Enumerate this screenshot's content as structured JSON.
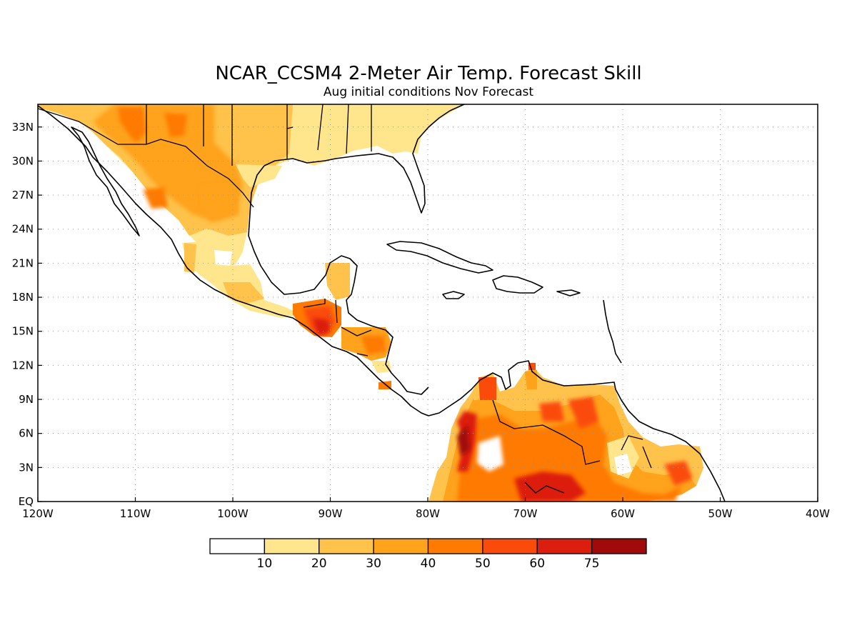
{
  "title": "NCAR_CCSM4 2-Meter Air Temp. Forecast Skill",
  "subtitle": "Aug initial conditions  Nov Forecast",
  "map": {
    "lon_range": [
      -120,
      -40
    ],
    "lat_range": [
      0,
      35
    ],
    "lon_ticks": [
      {
        "value": -120,
        "label": "120W"
      },
      {
        "value": -110,
        "label": "110W"
      },
      {
        "value": -100,
        "label": "100W"
      },
      {
        "value": -90,
        "label": "90W"
      },
      {
        "value": -80,
        "label": "80W"
      },
      {
        "value": -70,
        "label": "70W"
      },
      {
        "value": -60,
        "label": "60W"
      },
      {
        "value": -50,
        "label": "50W"
      },
      {
        "value": -40,
        "label": "40W"
      }
    ],
    "lat_ticks": [
      {
        "value": 0,
        "label": "EQ"
      },
      {
        "value": 3,
        "label": "3N"
      },
      {
        "value": 6,
        "label": "6N"
      },
      {
        "value": 9,
        "label": "9N"
      },
      {
        "value": 12,
        "label": "12N"
      },
      {
        "value": 15,
        "label": "15N"
      },
      {
        "value": 18,
        "label": "18N"
      },
      {
        "value": 21,
        "label": "21N"
      },
      {
        "value": 24,
        "label": "24N"
      },
      {
        "value": 27,
        "label": "27N"
      },
      {
        "value": 30,
        "label": "30N"
      },
      {
        "value": 33,
        "label": "33N"
      }
    ],
    "grid": true
  },
  "colorbar": {
    "levels": [
      "10",
      "20",
      "30",
      "40",
      "50",
      "60",
      "75"
    ],
    "colors": [
      "#ffffff",
      "#ffe68c",
      "#ffc24a",
      "#ffa21c",
      "#ff7a00",
      "#fa4b0a",
      "#dc1e0f",
      "#a00a0a"
    ]
  },
  "chart_data": {
    "type": "heatmap",
    "title": "NCAR_CCSM4 2-Meter Air Temp. Forecast Skill",
    "subtitle": "Aug initial conditions  Nov Forecast",
    "xlim": [
      -120,
      -40
    ],
    "ylim": [
      0,
      35
    ],
    "levels": [
      10,
      20,
      30,
      40,
      50,
      60,
      75
    ],
    "regions": [
      {
        "lon": -108,
        "lat": 33,
        "value": 35
      },
      {
        "lon": -111,
        "lat": 34,
        "value": 45
      },
      {
        "lon": -106,
        "lat": 33,
        "value": 40
      },
      {
        "lon": -98,
        "lat": 32,
        "value": 25
      },
      {
        "lon": -91,
        "lat": 32,
        "value": 15
      },
      {
        "lon": -85,
        "lat": 32,
        "value": 12
      },
      {
        "lon": -106,
        "lat": 27,
        "value": 35
      },
      {
        "lon": -101,
        "lat": 26,
        "value": 38
      },
      {
        "lon": -103,
        "lat": 21,
        "value": 22
      },
      {
        "lon": -91,
        "lat": 15.5,
        "value": 70
      },
      {
        "lon": -85,
        "lat": 14,
        "value": 45
      },
      {
        "lon": -76,
        "lat": 6,
        "value": 72
      },
      {
        "lon": -73,
        "lat": 9,
        "value": 55
      },
      {
        "lon": -68,
        "lat": 1,
        "value": 62
      },
      {
        "lon": -66,
        "lat": 7,
        "value": 45
      },
      {
        "lon": -54,
        "lat": 3,
        "value": 50
      },
      {
        "lon": -62,
        "lat": 3,
        "value": 20
      }
    ]
  }
}
